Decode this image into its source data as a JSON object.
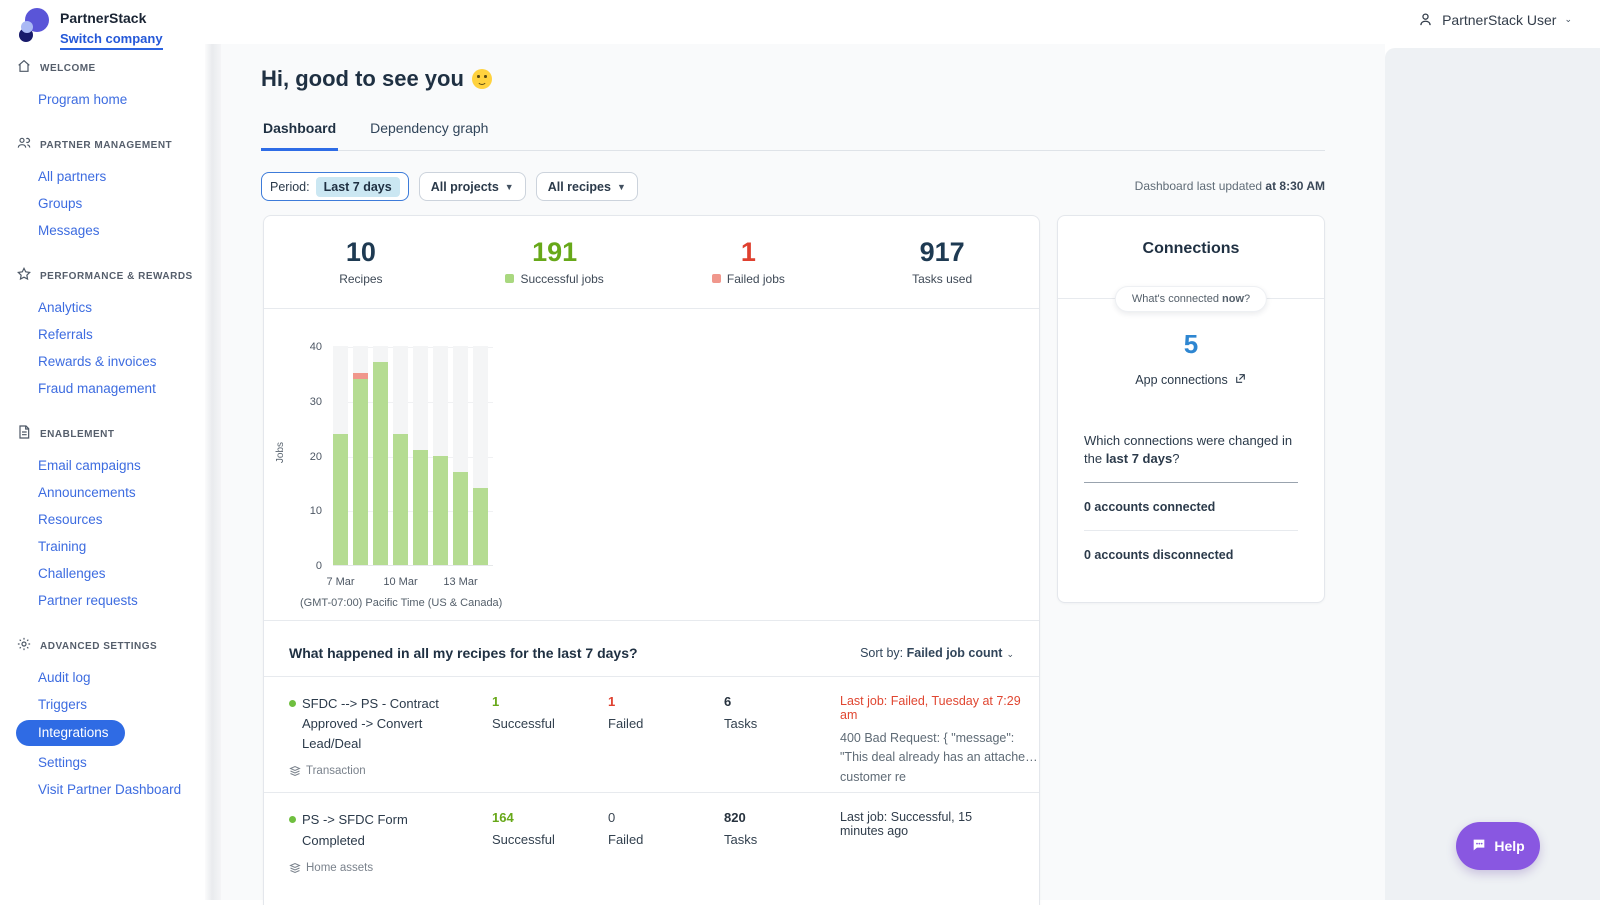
{
  "topbar": {
    "brand": "PartnerStack",
    "switch_company": "Switch company",
    "user_name": "PartnerStack User"
  },
  "sidebar": {
    "sections": [
      {
        "key": "welcome",
        "label": "WELCOME",
        "icon": "home-icon",
        "items": [
          {
            "key": "program-home",
            "label": "Program home"
          }
        ]
      },
      {
        "key": "partner-management",
        "label": "PARTNER MANAGEMENT",
        "icon": "people-icon",
        "items": [
          {
            "key": "all-partners",
            "label": "All partners"
          },
          {
            "key": "groups",
            "label": "Groups"
          },
          {
            "key": "messages",
            "label": "Messages"
          }
        ]
      },
      {
        "key": "performance-rewards",
        "label": "PERFORMANCE & REWARDS",
        "icon": "star-icon",
        "items": [
          {
            "key": "analytics",
            "label": "Analytics"
          },
          {
            "key": "referrals",
            "label": "Referrals"
          },
          {
            "key": "rewards-invoices",
            "label": "Rewards & invoices"
          },
          {
            "key": "fraud-management",
            "label": "Fraud management"
          }
        ]
      },
      {
        "key": "enablement",
        "label": "ENABLEMENT",
        "icon": "document-icon",
        "items": [
          {
            "key": "email-campaigns",
            "label": "Email campaigns"
          },
          {
            "key": "announcements",
            "label": "Announcements"
          },
          {
            "key": "resources",
            "label": "Resources"
          },
          {
            "key": "training",
            "label": "Training"
          },
          {
            "key": "challenges",
            "label": "Challenges"
          },
          {
            "key": "partner-requests",
            "label": "Partner requests"
          }
        ]
      },
      {
        "key": "advanced-settings",
        "label": "ADVANCED SETTINGS",
        "icon": "gear-icon",
        "items": [
          {
            "key": "audit-log",
            "label": "Audit log"
          },
          {
            "key": "triggers",
            "label": "Triggers"
          },
          {
            "key": "integrations",
            "label": "Integrations",
            "active": true
          },
          {
            "key": "settings",
            "label": "Settings"
          },
          {
            "key": "visit-partner-dashboard",
            "label": "Visit Partner Dashboard"
          }
        ]
      }
    ],
    "active_color": "#2f6be4"
  },
  "header": {
    "greeting": "Hi, good to see you",
    "tabs": [
      {
        "label": "Dashboard",
        "active": true
      },
      {
        "label": "Dependency graph",
        "active": false
      }
    ],
    "last_updated_prefix": "Dashboard last updated ",
    "last_updated_bold": "at 8:30 AM"
  },
  "filters": {
    "period_label": "Period:",
    "period_value": "Last 7 days",
    "projects_value": "All projects",
    "recipes_value": "All recipes"
  },
  "stats": [
    {
      "value": "10",
      "label": "Recipes",
      "color": "#1e3a52",
      "swatch": null
    },
    {
      "value": "191",
      "label": "Successful jobs",
      "color": "#67a819",
      "swatch": "#a9d87f"
    },
    {
      "value": "1",
      "label": "Failed jobs",
      "color": "#df402f",
      "swatch": "#f0978c"
    },
    {
      "value": "917",
      "label": "Tasks used",
      "color": "#1e3a52",
      "swatch": null
    }
  ],
  "chart_data": {
    "type": "bar",
    "stacked": true,
    "categories": [
      "7 Mar",
      "8 Mar",
      "9 Mar",
      "10 Mar",
      "11 Mar",
      "12 Mar",
      "13 Mar",
      "14 Mar"
    ],
    "series": [
      {
        "name": "Successful jobs",
        "color": "#b5dc92",
        "values": [
          24,
          34,
          37,
          24,
          21,
          20,
          17,
          14
        ]
      },
      {
        "name": "Failed jobs",
        "color": "#f0978c",
        "values": [
          0,
          1,
          0,
          0,
          0,
          0,
          0,
          0
        ]
      }
    ],
    "title": "",
    "xlabel": "",
    "ylabel": "Jobs",
    "ylim": [
      0,
      40
    ],
    "yticks": [
      0,
      10,
      20,
      30,
      40
    ],
    "x_ticks_shown": {
      "slots": [
        0,
        3,
        6
      ],
      "labels": [
        "7 Mar",
        "10 Mar",
        "13 Mar"
      ]
    },
    "grid": "horizontal-faint",
    "legend_position": "none",
    "timezone_note": "(GMT-07:00) Pacific Time (US & Canada)"
  },
  "recipes_section": {
    "title": "What happened in all my recipes for the last 7 days?",
    "sort_prefix": "Sort by: ",
    "sort_value": "Failed job count",
    "col_labels": {
      "successful": "Successful",
      "failed": "Failed",
      "tasks": "Tasks"
    },
    "rows": [
      {
        "name": "SFDC --> PS - Contract Approved -> Convert Lead/Deal",
        "tag": "Transaction",
        "successful": "1",
        "failed": "1",
        "tasks": "6",
        "last_job": "Last job: Failed, Tuesday at 7:29 am",
        "last_job_status": "failed",
        "error": "400 Bad Request: { \"message\": \"This deal already has an attached customer re"
      },
      {
        "name": "PS -> SFDC Form Completed",
        "tag": "Home assets",
        "successful": "164",
        "failed": "0",
        "tasks": "820",
        "last_job": "Last job: Successful, 15 minutes ago",
        "last_job_status": "success",
        "error": ""
      }
    ]
  },
  "connections": {
    "title": "Connections",
    "pill_prefix": "What's connected ",
    "pill_bold": "now",
    "pill_suffix": "?",
    "count": "5",
    "count_color": "#2e86d1",
    "link_label": "App connections",
    "question_prefix": "Which connections were changed in the ",
    "question_bold": "last 7 days",
    "question_suffix": "?",
    "connected_label": "0 accounts connected",
    "disconnected_label": "0 accounts disconnected"
  },
  "help": {
    "label": "Help"
  }
}
